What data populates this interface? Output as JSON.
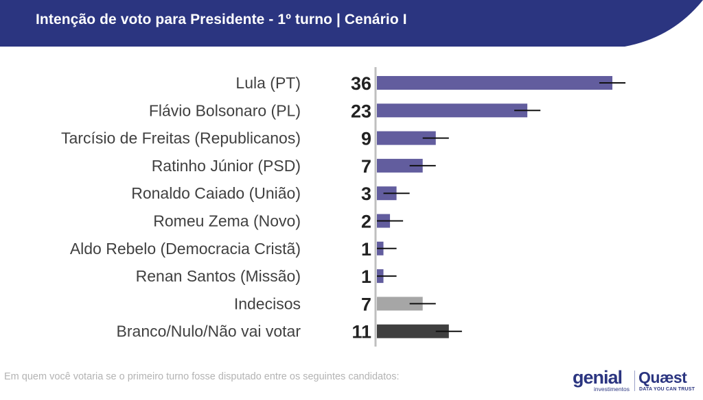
{
  "header": {
    "title": "Intenção de voto para Presidente - 1º turno | Cenário I",
    "colors": {
      "background": "#2b3580",
      "accent_curve": "#ffffff"
    }
  },
  "chart_data": {
    "type": "bar",
    "orientation": "horizontal",
    "categories": [
      "Lula (PT)",
      "Flávio Bolsonaro (PL)",
      "Tarcísio de Freitas (Republicanos)",
      "Ratinho Júnior (PSD)",
      "Ronaldo Caiado (União)",
      "Romeu Zema (Novo)",
      "Aldo Rebelo (Democracia Cristã)",
      "Renan Santos (Missão)",
      "Indecisos",
      "Branco/Nulo/Não vai votar"
    ],
    "values": [
      36,
      23,
      9,
      7,
      3,
      2,
      1,
      1,
      7,
      11
    ],
    "value_labels": [
      "36",
      "23",
      "9",
      "7",
      "3",
      "2",
      "1",
      "1",
      "7",
      "11"
    ],
    "error_margin": 2,
    "xlim": [
      0,
      40
    ],
    "bar_colors": [
      "#625d9e",
      "#625d9e",
      "#625d9e",
      "#625d9e",
      "#625d9e",
      "#625d9e",
      "#625d9e",
      "#625d9e",
      "#a6a6a6",
      "#3f3f3f"
    ],
    "grid": false,
    "legend": "none"
  },
  "footnote": "Em quem você votaria se o primeiro turno fosse disputado entre os seguintes candidatos:",
  "logos": {
    "genial": {
      "word": "genial",
      "sub": "investimentos"
    },
    "quaest": {
      "word": "Quæst",
      "sub": "DATA YOU CAN TRUST"
    }
  }
}
